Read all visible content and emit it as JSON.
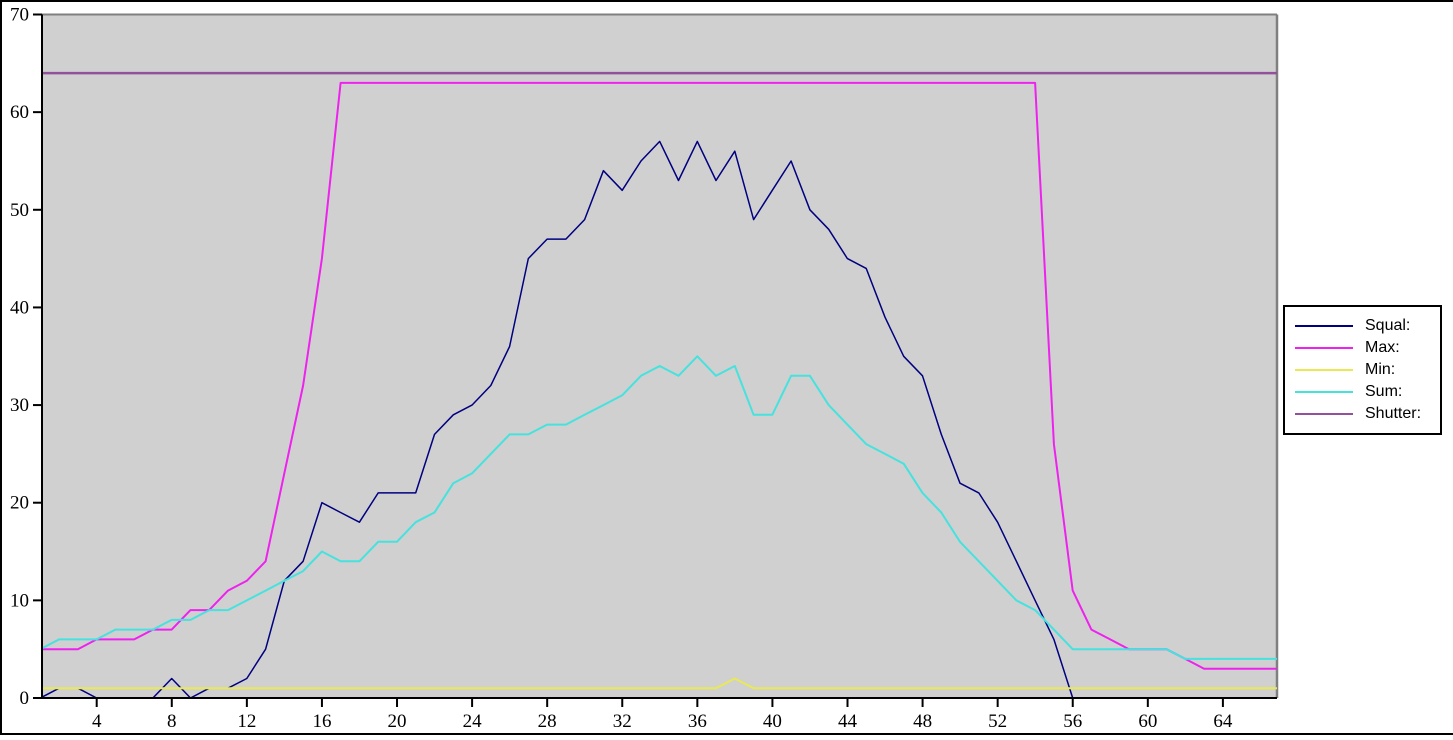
{
  "chart_data": {
    "type": "line",
    "title": "",
    "xlabel": "",
    "ylabel": "",
    "xlim": [
      1,
      67
    ],
    "ylim": [
      0,
      70
    ],
    "x_ticks": [
      4,
      8,
      12,
      16,
      20,
      24,
      28,
      32,
      36,
      40,
      44,
      48,
      52,
      56,
      60,
      64
    ],
    "y_ticks": [
      0,
      10,
      20,
      30,
      40,
      50,
      60,
      70
    ],
    "grid": false,
    "legend_position": "right",
    "plot_bg_color": "#d0d0d0",
    "axis_color": "#000000",
    "plot_border_color": "#808080",
    "x": [
      1,
      2,
      3,
      4,
      5,
      6,
      7,
      8,
      9,
      10,
      11,
      12,
      13,
      14,
      15,
      16,
      17,
      18,
      19,
      20,
      21,
      22,
      23,
      24,
      25,
      26,
      27,
      28,
      29,
      30,
      31,
      32,
      33,
      34,
      35,
      36,
      37,
      38,
      39,
      40,
      41,
      42,
      43,
      44,
      45,
      46,
      47,
      48,
      49,
      50,
      51,
      52,
      53,
      54,
      55,
      56,
      57,
      58,
      59,
      60,
      61,
      62,
      63,
      64,
      65,
      66,
      67
    ],
    "series": [
      {
        "name": "Squal:",
        "color": "#000080",
        "values": [
          0,
          1,
          1,
          0,
          0,
          0,
          0,
          2,
          0,
          1,
          1,
          2,
          5,
          12,
          14,
          20,
          19,
          18,
          21,
          21,
          21,
          27,
          29,
          30,
          32,
          36,
          45,
          47,
          47,
          49,
          54,
          52,
          55,
          57,
          53,
          57,
          53,
          56,
          49,
          52,
          55,
          50,
          48,
          45,
          44,
          39,
          35,
          33,
          27,
          22,
          21,
          18,
          14,
          10,
          6,
          0,
          0,
          0,
          0,
          0,
          0,
          0,
          0,
          0,
          0,
          0,
          0
        ]
      },
      {
        "name": "Max:",
        "color": "#ee22ee",
        "values": [
          5,
          5,
          5,
          6,
          6,
          6,
          7,
          7,
          9,
          9,
          11,
          12,
          14,
          23,
          32,
          45,
          63,
          63,
          63,
          63,
          63,
          63,
          63,
          63,
          63,
          63,
          63,
          63,
          63,
          63,
          63,
          63,
          63,
          63,
          63,
          63,
          63,
          63,
          63,
          63,
          63,
          63,
          63,
          63,
          63,
          63,
          63,
          63,
          63,
          63,
          63,
          63,
          63,
          63,
          26,
          11,
          7,
          6,
          5,
          5,
          5,
          4,
          3,
          3,
          3,
          3,
          3
        ]
      },
      {
        "name": "Min:",
        "color": "#e9e955",
        "values": [
          1,
          1,
          1,
          1,
          1,
          1,
          1,
          1,
          1,
          1,
          1,
          1,
          1,
          1,
          1,
          1,
          1,
          1,
          1,
          1,
          1,
          1,
          1,
          1,
          1,
          1,
          1,
          1,
          1,
          1,
          1,
          1,
          1,
          1,
          1,
          1,
          1,
          2,
          1,
          1,
          1,
          1,
          1,
          1,
          1,
          1,
          1,
          1,
          1,
          1,
          1,
          1,
          1,
          1,
          1,
          1,
          1,
          1,
          1,
          1,
          1,
          1,
          1,
          1,
          1,
          1,
          1
        ]
      },
      {
        "name": "Sum:",
        "color": "#45e2de",
        "values": [
          5,
          6,
          6,
          6,
          7,
          7,
          7,
          8,
          8,
          9,
          9,
          10,
          11,
          12,
          13,
          15,
          14,
          14,
          16,
          16,
          18,
          19,
          22,
          23,
          25,
          27,
          27,
          28,
          28,
          29,
          30,
          31,
          33,
          34,
          33,
          35,
          33,
          34,
          29,
          29,
          33,
          33,
          30,
          28,
          26,
          25,
          24,
          21,
          19,
          16,
          14,
          12,
          10,
          9,
          7,
          5,
          5,
          5,
          5,
          5,
          5,
          4,
          4,
          4,
          4,
          4,
          4
        ]
      },
      {
        "name": "Shutter:",
        "color": "#93519c",
        "values": [
          64,
          64,
          64,
          64,
          64,
          64,
          64,
          64,
          64,
          64,
          64,
          64,
          64,
          64,
          64,
          64,
          64,
          64,
          64,
          64,
          64,
          64,
          64,
          64,
          64,
          64,
          64,
          64,
          64,
          64,
          64,
          64,
          64,
          64,
          64,
          64,
          64,
          64,
          64,
          64,
          64,
          64,
          64,
          64,
          64,
          64,
          64,
          64,
          64,
          64,
          64,
          64,
          64,
          64,
          64,
          64,
          64,
          64,
          64,
          64,
          64,
          64,
          64,
          64,
          64,
          64,
          64
        ]
      }
    ],
    "legend_labels": [
      "Squal:",
      "Max:",
      "Min:",
      "Sum:",
      "Shutter:"
    ]
  }
}
